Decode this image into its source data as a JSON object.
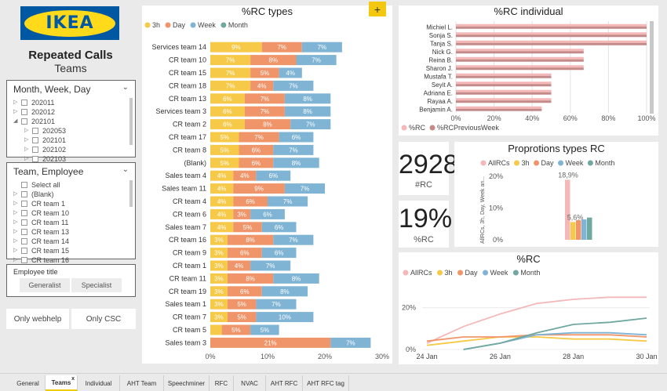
{
  "brand": {
    "logo_text": "IKEA",
    "title": "Repeated Calls",
    "subtitle": "Teams"
  },
  "slicers": {
    "period": {
      "title": "Month, Week, Day",
      "items": [
        {
          "label": "202011",
          "indent": 0,
          "tri": "▷"
        },
        {
          "label": "202012",
          "indent": 0,
          "tri": "▷"
        },
        {
          "label": "202101",
          "indent": 0,
          "tri": "◢"
        },
        {
          "label": "202053",
          "indent": 1,
          "tri": "▷"
        },
        {
          "label": "202101",
          "indent": 1,
          "tri": "▷"
        },
        {
          "label": "202102",
          "indent": 1,
          "tri": "▷"
        },
        {
          "label": "202103",
          "indent": 1,
          "tri": "▷"
        }
      ]
    },
    "team": {
      "title": "Team, Employee",
      "items": [
        {
          "label": "Select all",
          "tri": ""
        },
        {
          "label": "(Blank)",
          "tri": "▷"
        },
        {
          "label": "CR team 1",
          "tri": "▷"
        },
        {
          "label": "CR team 10",
          "tri": "▷"
        },
        {
          "label": "CR team 11",
          "tri": "▷"
        },
        {
          "label": "CR team 13",
          "tri": "▷"
        },
        {
          "label": "CR team 14",
          "tri": "▷"
        },
        {
          "label": "CR team 15",
          "tri": "▷"
        },
        {
          "label": "CR team 16",
          "tri": "▷"
        }
      ]
    },
    "employee_title": {
      "title": "Employee title",
      "options": [
        "Generalist",
        "Specialist"
      ]
    }
  },
  "buttons": {
    "webhelp": "Only webhelp",
    "csc": "Only CSC"
  },
  "tabs": [
    {
      "label": "General",
      "active": false
    },
    {
      "label": "Teams",
      "active": true,
      "close": "x"
    },
    {
      "label": "Individual",
      "active": false
    },
    {
      "label": "AHT Team",
      "active": false
    },
    {
      "label": "Speechminer",
      "active": false
    },
    {
      "label": "RFC",
      "active": false
    },
    {
      "label": "NVAC",
      "active": false
    },
    {
      "label": "AHT RFC",
      "active": false
    },
    {
      "label": "AHT RFC tag",
      "active": false
    }
  ],
  "add_tab_label": "+",
  "colors": {
    "h3": "#f7c948",
    "day": "#f0956a",
    "week": "#7fb4d4",
    "month": "#6fa8a0",
    "allrc": "#f4b8b8",
    "rc": "#f4b8b8",
    "rc_prev": "#c48a8a"
  },
  "kpi": {
    "count": "2928",
    "count_label": "#RC",
    "pct": "19%",
    "pct_label": "%RC"
  },
  "chart_data": [
    {
      "type": "bar",
      "orientation": "horizontal",
      "stacked": true,
      "title": "%RC types",
      "legend": [
        "3h",
        "Day",
        "Week",
        "Month"
      ],
      "categories": [
        "Services team 14",
        "CR team 10",
        "CR team 15",
        "CR team 18",
        "CR team 13",
        "Services team 3",
        "CR team 2",
        "CR team 17",
        "CR team 8",
        "(Blank)",
        "Sales team 4",
        "Sales team 11",
        "CR team 4",
        "CR team 6",
        "Sales team 7",
        "CR team 16",
        "CR team 9",
        "CR team 1",
        "CR team 11",
        "CR team 19",
        "Sales team 1",
        "CR team 7",
        "CR team 5",
        "Sales team 3"
      ],
      "series": [
        {
          "name": "3h",
          "values": [
            9,
            7,
            7,
            7,
            6,
            6,
            6,
            5,
            5,
            5,
            4,
            4,
            4,
            4,
            4,
            3,
            3,
            3,
            3,
            3,
            3,
            3,
            2,
            0
          ],
          "labels": [
            "9%",
            "7%",
            "7%",
            "7%",
            "6%",
            "6%",
            "6%",
            "5%",
            "5%",
            "5%",
            "4%",
            "4%",
            "4%",
            "4%",
            "4%",
            "3%",
            "3%",
            "3%",
            "3%",
            "3%",
            "3%",
            "3%",
            "",
            ""
          ]
        },
        {
          "name": "Day",
          "values": [
            7,
            8,
            5,
            4,
            7,
            7,
            8,
            7,
            6,
            6,
            4,
            9,
            6,
            3,
            5,
            8,
            6,
            4,
            8,
            6,
            5,
            5,
            5,
            21
          ],
          "labels": [
            "7%",
            "8%",
            "5%",
            "4%",
            "7%",
            "7%",
            "8%",
            "7%",
            "6%",
            "6%",
            "4%",
            "9%",
            "6%",
            "3%",
            "5%",
            "8%",
            "6%",
            "4%",
            "8%",
            "6%",
            "5%",
            "5%",
            "5%",
            "21%"
          ]
        },
        {
          "name": "Week",
          "values": [
            7,
            7,
            4,
            7,
            8,
            8,
            7,
            6,
            7,
            8,
            6,
            7,
            7,
            6,
            6,
            7,
            6,
            7,
            8,
            8,
            7,
            10,
            5,
            7
          ],
          "labels": [
            "7%",
            "7%",
            "4%",
            "7%",
            "8%",
            "8%",
            "7%",
            "6%",
            "7%",
            "8%",
            "6%",
            "7%",
            "7%",
            "6%",
            "6%",
            "7%",
            "6%",
            "7%",
            "8%",
            "8%",
            "7%",
            "10%",
            "5%",
            "7%"
          ]
        }
      ],
      "x_ticks": [
        "0%",
        "10%",
        "20%",
        "30%"
      ],
      "xlim": [
        0,
        30
      ]
    },
    {
      "type": "bar",
      "orientation": "horizontal",
      "title": "%RC individual",
      "legend": [
        "%RC",
        "%RCPreviousWeek"
      ],
      "categories": [
        "Michiel L.",
        "Sonja S.",
        "Tanja S.",
        "Nick G.",
        "Reina B.",
        "Sharon J.",
        "Mustafa T.",
        "Seyit A.",
        "Adriana E.",
        "Rayaa A.",
        "Benjamin A."
      ],
      "series": [
        {
          "name": "%RC",
          "values": [
            100,
            100,
            100,
            67,
            67,
            67,
            50,
            50,
            50,
            50,
            45
          ]
        },
        {
          "name": "%RCPreviousWeek",
          "values": [
            100,
            100,
            100,
            67,
            67,
            67,
            50,
            50,
            50,
            50,
            45
          ]
        }
      ],
      "x_ticks": [
        "0%",
        "20%",
        "40%",
        "60%",
        "80%",
        "100%"
      ],
      "xlim": [
        0,
        100
      ]
    },
    {
      "type": "bar",
      "title": "Proprotions types RC",
      "ylabel": "AllRCs, 3h, Day, Week an...",
      "legend": [
        "AllRCs",
        "3h",
        "Day",
        "Week",
        "Month"
      ],
      "series": [
        {
          "name": "AllRCs",
          "values": [
            18.9
          ],
          "label": "18,9%"
        },
        {
          "name": "3h",
          "values": [
            5.6
          ],
          "label": "5,6%"
        },
        {
          "name": "Day",
          "values": [
            6.2
          ]
        },
        {
          "name": "Week",
          "values": [
            6.4
          ]
        },
        {
          "name": "Month",
          "values": [
            7.0
          ]
        }
      ],
      "y_ticks": [
        "0%",
        "10%",
        "20%"
      ],
      "ylim": [
        0,
        20
      ]
    },
    {
      "type": "line",
      "title": "%RC",
      "legend": [
        "AllRCs",
        "3h",
        "Day",
        "Week",
        "Month"
      ],
      "x_ticks": [
        "24 Jan",
        "26 Jan",
        "28 Jan",
        "30 Jan"
      ],
      "y_ticks": [
        "0%",
        "20%"
      ],
      "ylim": [
        0,
        30
      ],
      "x": [
        "24 Jan",
        "25 Jan",
        "26 Jan",
        "27 Jan",
        "28 Jan",
        "29 Jan",
        "30 Jan"
      ],
      "series": [
        {
          "name": "AllRCs",
          "values": [
            3,
            11,
            17,
            22,
            24,
            25,
            25
          ]
        },
        {
          "name": "3h",
          "values": [
            2,
            4,
            6,
            6,
            5,
            5,
            4
          ]
        },
        {
          "name": "Day",
          "values": [
            4,
            6,
            6,
            7,
            7,
            7,
            6
          ]
        },
        {
          "name": "Week",
          "values": [
            null,
            0,
            3,
            7,
            8,
            8,
            7
          ]
        },
        {
          "name": "Month",
          "values": [
            null,
            0,
            3,
            8,
            12,
            13,
            15
          ]
        }
      ]
    }
  ]
}
